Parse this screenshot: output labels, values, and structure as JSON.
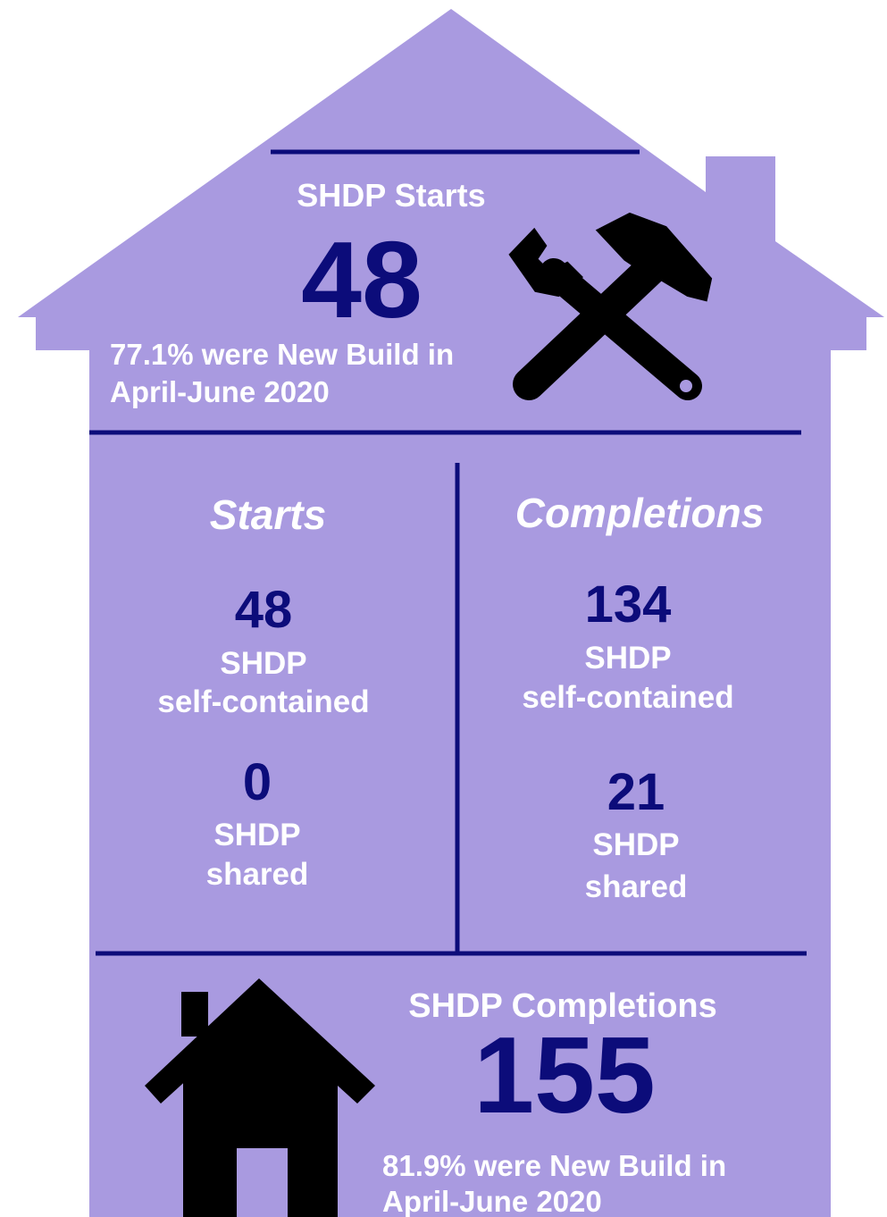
{
  "top": {
    "title": "SHDP Starts",
    "value": 48,
    "note_line1": "77.1% were New Build in",
    "note_line2": "April-June 2020"
  },
  "starts": {
    "heading": "Starts",
    "items": [
      {
        "value": 48,
        "line1": "SHDP",
        "line2": "self-contained"
      },
      {
        "value": 0,
        "line1": "SHDP",
        "line2": "shared"
      }
    ]
  },
  "completions": {
    "heading": "Completions",
    "items": [
      {
        "value": 134,
        "line1": "SHDP",
        "line2": "self-contained"
      },
      {
        "value": 21,
        "line1": "SHDP",
        "line2": "shared"
      }
    ]
  },
  "bottom": {
    "title": "SHDP Completions",
    "value": 155,
    "note_line1": "81.9% were New Build in",
    "note_line2": "April-June 2020"
  }
}
